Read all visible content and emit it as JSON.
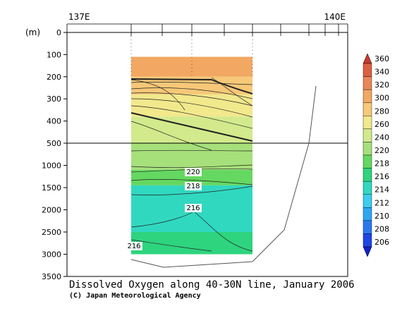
{
  "chart_data": {
    "type": "heatmap",
    "title": "Dissolved Oxygen along 40-30N line, January 2006",
    "credit": "(C) Japan Meteorological Agency",
    "ylabel": "(m)",
    "x_top_ticks": [
      "137E",
      "140E"
    ],
    "y_ticks_upper": [
      0,
      100,
      200,
      300,
      400,
      500
    ],
    "y_ticks_lower": [
      1000,
      1500,
      2000,
      2500,
      3000,
      3500
    ],
    "ylim": [
      0,
      3500
    ],
    "depth_break": 500,
    "colorbar": {
      "levels": [
        206,
        208,
        210,
        212,
        214,
        216,
        218,
        220,
        240,
        260,
        280,
        300,
        320,
        340,
        360
      ],
      "colors": [
        "#1420c8",
        "#1e46e6",
        "#2a78f0",
        "#2fa6f2",
        "#3ccdf0",
        "#30d8c0",
        "#2ed47e",
        "#64d860",
        "#a6e07a",
        "#d2ea8c",
        "#f2e88c",
        "#f6c878",
        "#f2a862",
        "#ea8658",
        "#dc6042",
        "#c83a2a"
      ]
    },
    "contour_labels": [
      "220",
      "218",
      "216",
      "216"
    ],
    "upper_layers": [
      {
        "top": 110,
        "bottom": 200,
        "value": 310
      },
      {
        "top": 200,
        "bottom": 280,
        "value": 290
      },
      {
        "top": 280,
        "bottom": 380,
        "value": 270
      },
      {
        "top": 380,
        "bottom": 500,
        "value": 250
      }
    ],
    "lower_layers": [
      {
        "top": 500,
        "bottom": 1100,
        "value": 230
      },
      {
        "top": 1100,
        "bottom": 1450,
        "value": 219
      },
      {
        "top": 1450,
        "bottom": 2500,
        "value": 215
      },
      {
        "top": 2500,
        "bottom": 3000,
        "value": 217
      }
    ]
  }
}
